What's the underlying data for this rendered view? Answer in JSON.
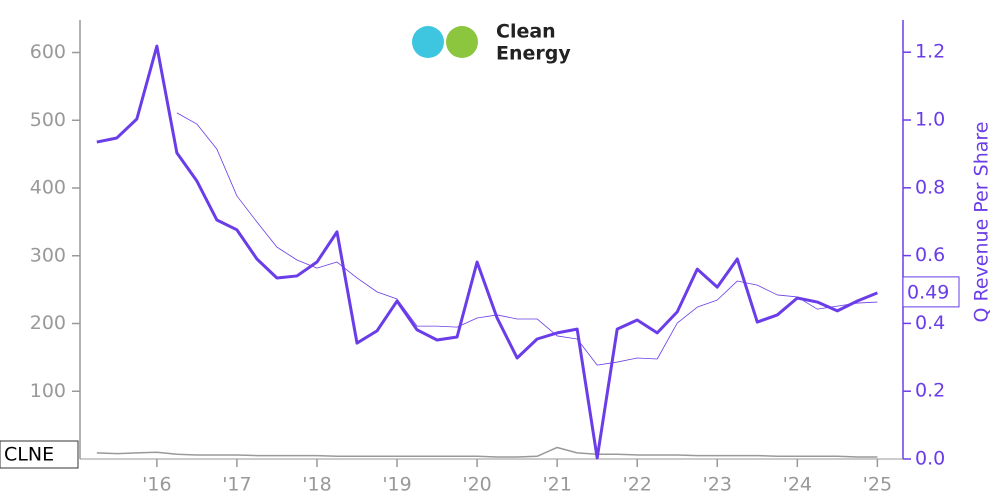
{
  "chart_data": {
    "type": "line",
    "logo_lines": [
      "Clean",
      "Energy"
    ],
    "y2label": "Q Revenue Per Share",
    "x": [
      2015.25,
      2015.5,
      2015.75,
      2016,
      2016.25,
      2016.5,
      2016.75,
      2017,
      2017.25,
      2017.5,
      2017.75,
      2018,
      2018.25,
      2018.5,
      2018.75,
      2019,
      2019.25,
      2019.5,
      2019.75,
      2020,
      2020.25,
      2020.5,
      2020.75,
      2021,
      2021.25,
      2021.5,
      2021.75,
      2022,
      2022.25,
      2022.5,
      2022.75,
      2023,
      2023.25,
      2023.5,
      2023.75,
      2024,
      2024.25,
      2024.5,
      2024.75,
      2025
    ],
    "series": [
      {
        "name": "CLNE",
        "color": "#999999",
        "axis": "y",
        "values": [
          9,
          8,
          9,
          10,
          7,
          6,
          6,
          6,
          5,
          5,
          5,
          5,
          4,
          4,
          4,
          4,
          4,
          4,
          4,
          4,
          3,
          3,
          4,
          17,
          9,
          7,
          7,
          6,
          6,
          6,
          5,
          5,
          5,
          5,
          4,
          4,
          4,
          4,
          3,
          3
        ]
      },
      {
        "color": "#6a3de8",
        "axis": "y2",
        "width": 3,
        "values": [
          0.935,
          0.947,
          1.003,
          1.218,
          0.903,
          0.82,
          0.705,
          0.676,
          0.59,
          0.534,
          0.54,
          0.581,
          0.67,
          0.342,
          0.378,
          0.466,
          0.381,
          0.351,
          0.36,
          0.581,
          0.416,
          0.298,
          0.354,
          0.372,
          0.383,
          0.003,
          0.383,
          0.41,
          0.372,
          0.434,
          0.56,
          0.507,
          0.59,
          0.404,
          0.425,
          0.475,
          0.463,
          0.437,
          0.466,
          0.49
        ]
      },
      {
        "color": "#6a3de8",
        "axis": "y2",
        "width": 0.8,
        "values": [
          null,
          null,
          null,
          null,
          1.021,
          0.988,
          0.914,
          0.776,
          0.699,
          0.625,
          0.587,
          0.563,
          0.581,
          0.534,
          0.493,
          0.472,
          0.392,
          0.392,
          0.389,
          0.416,
          0.425,
          0.413,
          0.413,
          0.363,
          0.354,
          0.277,
          0.286,
          0.298,
          0.295,
          0.401,
          0.448,
          0.469,
          0.525,
          0.513,
          0.484,
          0.478,
          0.442,
          0.451,
          0.46,
          0.463
        ]
      }
    ],
    "xlim": [
      2015.04,
      2025.32
    ],
    "xticks": [
      {
        "value": 2016,
        "label": "'16"
      },
      {
        "value": 2017,
        "label": "'17"
      },
      {
        "value": 2018,
        "label": "'18"
      },
      {
        "value": 2019,
        "label": "'19"
      },
      {
        "value": 2020,
        "label": "'20"
      },
      {
        "value": 2021,
        "label": "'21"
      },
      {
        "value": 2022,
        "label": "'22"
      },
      {
        "value": 2023,
        "label": "'23"
      },
      {
        "value": 2024,
        "label": "'24"
      },
      {
        "value": 2025,
        "label": "'25"
      }
    ],
    "ylim": [
      0,
      648
    ],
    "yticks": [
      100,
      200,
      300,
      400,
      500,
      600
    ],
    "y2lim": [
      0,
      1.295
    ],
    "y2ticks": [
      {
        "value": 0,
        "label": "0.0"
      },
      0.2,
      0.4,
      0.6,
      0.8,
      {
        "value": 1,
        "label": "1.0"
      },
      1.2
    ]
  }
}
